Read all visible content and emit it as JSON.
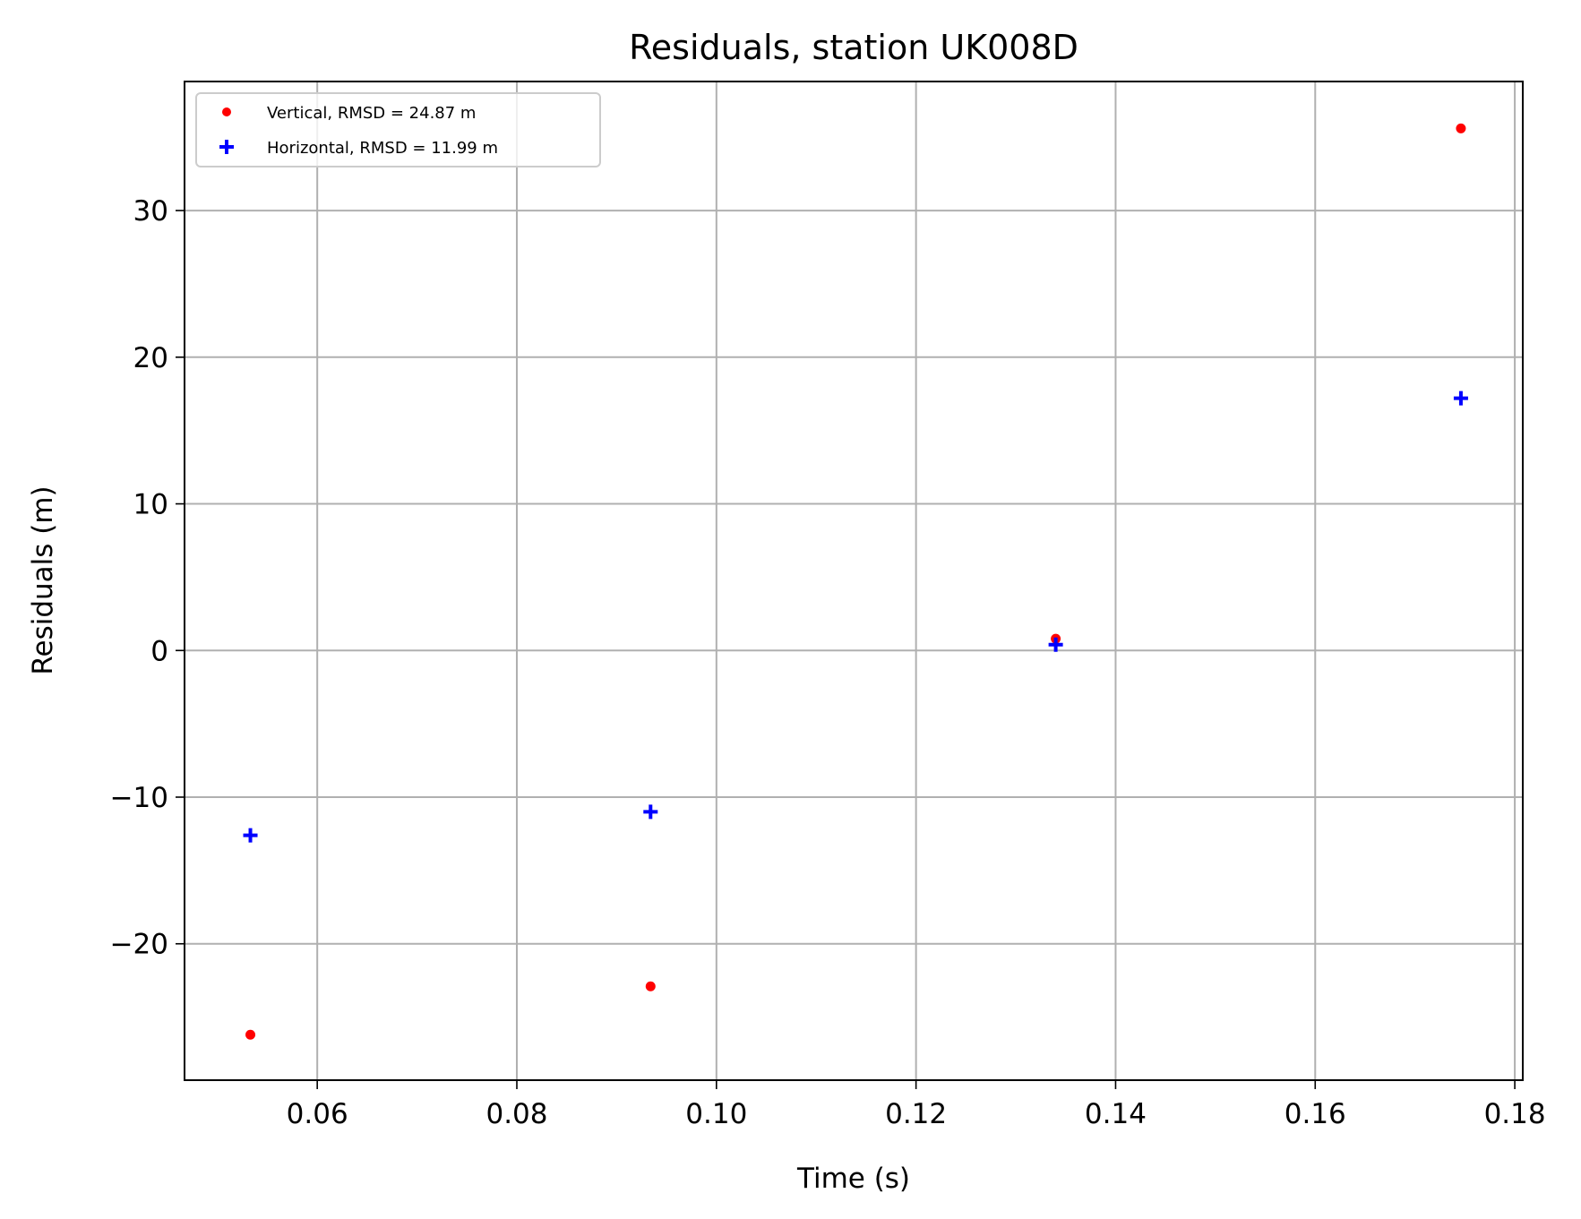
{
  "chart_data": {
    "type": "scatter",
    "title": "Residuals, station UK008D",
    "xlabel": "Time (s)",
    "ylabel": "Residuals (m)",
    "xlim": [
      0.0467,
      0.1808
    ],
    "ylim": [
      -29.3,
      38.8
    ],
    "xticks": [
      0.06,
      0.08,
      0.1,
      0.12,
      0.14,
      0.16,
      0.18
    ],
    "xtick_labels": [
      "0.06",
      "0.08",
      "0.10",
      "0.12",
      "0.14",
      "0.16",
      "0.18"
    ],
    "yticks": [
      -20,
      -10,
      0,
      10,
      20,
      30
    ],
    "ytick_labels": [
      "−20",
      "−10",
      "0",
      "10",
      "20",
      "30"
    ],
    "grid": true,
    "legend_position": "top-left",
    "series": [
      {
        "name": "Vertical, RMSD = 24.87 m",
        "marker": "dot",
        "color": "#ff0000",
        "x": [
          0.0533,
          0.0934,
          0.134,
          0.1746
        ],
        "y": [
          -26.2,
          -22.9,
          0.8,
          35.6
        ]
      },
      {
        "name": "Horizontal, RMSD = 11.99 m",
        "marker": "plus",
        "color": "#0000ff",
        "x": [
          0.0533,
          0.0934,
          0.134,
          0.1746
        ],
        "y": [
          -12.6,
          -11.0,
          0.4,
          17.2
        ]
      }
    ]
  }
}
